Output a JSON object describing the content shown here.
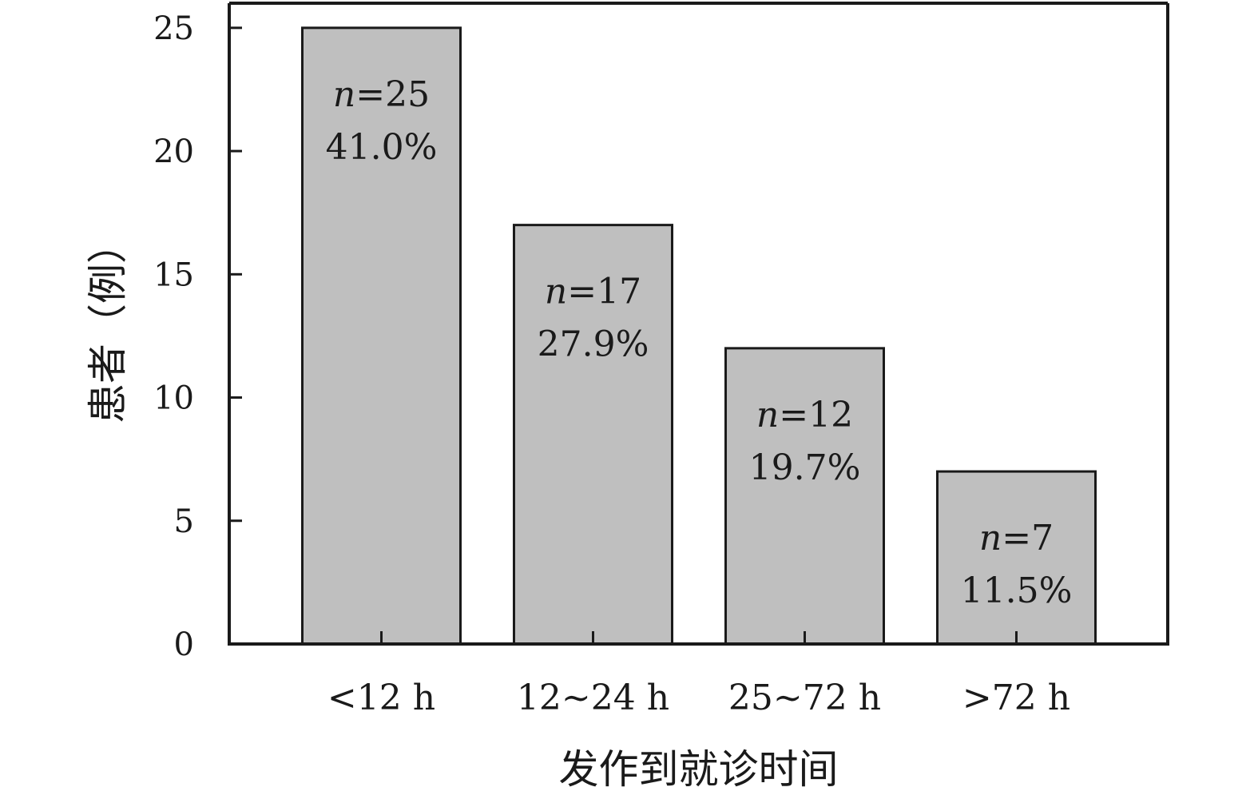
{
  "chart_data": {
    "type": "bar",
    "categories": [
      "<12 h",
      "12~24 h",
      "25~72 h",
      ">72 h"
    ],
    "values": [
      25,
      17,
      12,
      7
    ],
    "bar_labels": [
      {
        "n": "n",
        "count": "=25",
        "percent": "41.0%"
      },
      {
        "n": "n",
        "count": "=17",
        "percent": "27.9%"
      },
      {
        "n": "n",
        "count": "=12",
        "percent": "19.7%"
      },
      {
        "n": "n",
        "count": "=7",
        "percent": "11.5%"
      }
    ],
    "title": "",
    "xlabel": "发作到就诊时间",
    "ylabel": "患者（例）",
    "ylim": [
      0,
      26
    ],
    "yticks": [
      0,
      5,
      10,
      15,
      20,
      25
    ],
    "grid": false,
    "legend": "none",
    "colors": {
      "bar_fill": "#bfbfbf",
      "bar_stroke": "#1a1a1a",
      "axis": "#1a1a1a"
    }
  }
}
